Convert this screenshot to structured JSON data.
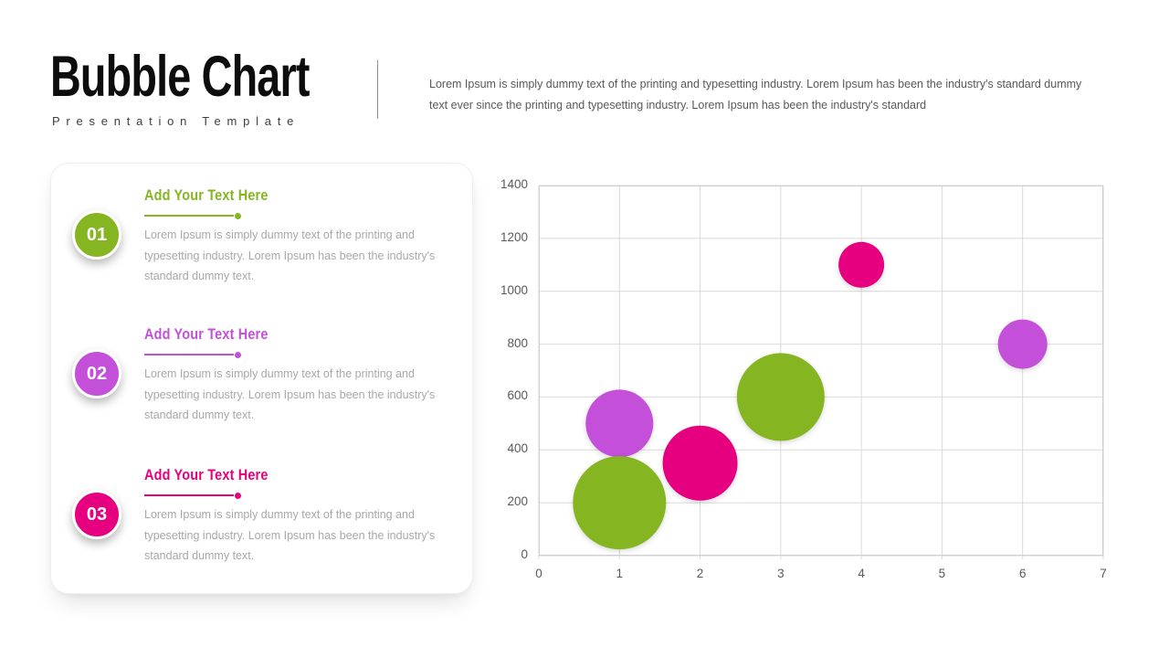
{
  "header": {
    "title": "Bubble Chart",
    "subtitle": "Presentation Template",
    "description": "Lorem Ipsum is simply dummy text of the printing and typesetting industry. Lorem Ipsum has been the industry's standard dummy text ever since the printing and typesetting industry. Lorem Ipsum has been the industry's standard"
  },
  "panel": {
    "items": [
      {
        "number": "01",
        "color": "#85b622",
        "heading": "Add Your Text Here",
        "body": "Lorem Ipsum is simply dummy text of the printing and typesetting industry. Lorem Ipsum has been the industry's standard dummy text."
      },
      {
        "number": "02",
        "color": "#c44fd9",
        "heading": "Add Your Text Here",
        "body": "Lorem Ipsum is simply dummy text of the printing and typesetting industry. Lorem Ipsum has been the industry's standard dummy text."
      },
      {
        "number": "03",
        "color": "#e60080",
        "heading": "Add Your Text Here",
        "body": "Lorem Ipsum is simply dummy text of the printing and typesetting industry. Lorem Ipsum has been the industry's standard dummy text."
      }
    ]
  },
  "chart_data": {
    "type": "scatter",
    "subtype": "bubble",
    "title": "",
    "xlabel": "",
    "ylabel": "",
    "xlim": [
      0,
      7
    ],
    "ylim": [
      0,
      1400
    ],
    "x_ticks": [
      0,
      1,
      2,
      3,
      4,
      5,
      6,
      7
    ],
    "y_ticks": [
      0,
      200,
      400,
      600,
      800,
      1000,
      1200,
      1400
    ],
    "grid": true,
    "legend": "none",
    "grid_color": "#dadada",
    "border_color": "#cfcfcf",
    "series": [
      {
        "name": "purple",
        "color": "#c44fd9",
        "points": [
          {
            "x": 1,
            "y": 500,
            "r": 37
          },
          {
            "x": 6,
            "y": 800,
            "r": 27
          }
        ]
      },
      {
        "name": "green",
        "color": "#85b622",
        "points": [
          {
            "x": 1,
            "y": 200,
            "r": 51
          },
          {
            "x": 3,
            "y": 600,
            "r": 48
          }
        ]
      },
      {
        "name": "pink",
        "color": "#e60080",
        "points": [
          {
            "x": 2,
            "y": 350,
            "r": 41
          },
          {
            "x": 4,
            "y": 1100,
            "r": 25
          }
        ]
      }
    ]
  }
}
